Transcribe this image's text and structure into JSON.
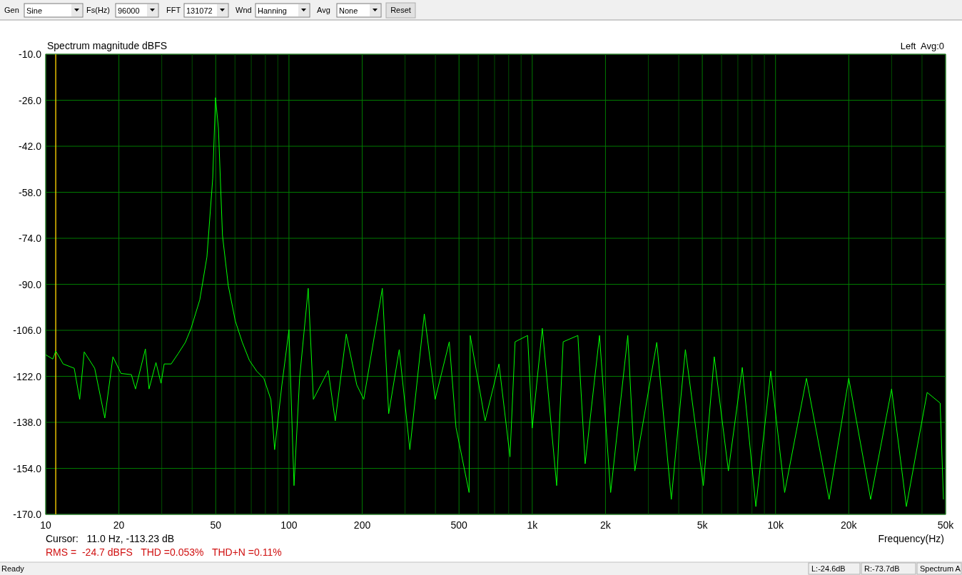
{
  "chart_data": {
    "type": "line",
    "title": "Spectrum magnitude dBFS",
    "xlabel": "Frequency(Hz)",
    "log": "x",
    "grid": true,
    "marker": "none",
    "line_style": "solid",
    "xlim": [
      10,
      50000
    ],
    "xticks": [
      10,
      20,
      {
        "value": 30,
        "label": null
      },
      {
        "value": 40,
        "label": null
      },
      50,
      {
        "value": 60,
        "label": null
      },
      {
        "value": 70,
        "label": null
      },
      {
        "value": 80,
        "label": null
      },
      {
        "value": 90,
        "label": null
      },
      100,
      200,
      {
        "value": 300,
        "label": null
      },
      {
        "value": 400,
        "label": null
      },
      500,
      {
        "value": 600,
        "label": null
      },
      {
        "value": 700,
        "label": null
      },
      {
        "value": 800,
        "label": null
      },
      {
        "value": 900,
        "label": null
      },
      {
        "value": 1000,
        "label": "1k"
      },
      {
        "value": 2000,
        "label": "2k"
      },
      {
        "value": 3000,
        "label": null
      },
      {
        "value": 4000,
        "label": null
      },
      {
        "value": 5000,
        "label": "5k"
      },
      {
        "value": 6000,
        "label": null
      },
      {
        "value": 7000,
        "label": null
      },
      {
        "value": 8000,
        "label": null
      },
      {
        "value": 9000,
        "label": null
      },
      {
        "value": 10000,
        "label": "10k"
      },
      {
        "value": 20000,
        "label": "20k"
      },
      {
        "value": 30000,
        "label": null
      },
      {
        "value": 40000,
        "label": null
      },
      {
        "value": 50000,
        "label": "50k"
      }
    ],
    "ylim": [
      -170,
      -10
    ],
    "yticks": [
      {
        "value": -10,
        "label": "-10.0"
      },
      {
        "value": -26,
        "label": "-26.0"
      },
      {
        "value": -42,
        "label": "-42.0"
      },
      {
        "value": -58,
        "label": "-58.0"
      },
      {
        "value": -74,
        "label": "-74.0"
      },
      {
        "value": -90,
        "label": "-90.0"
      },
      {
        "value": -106,
        "label": "-106.0"
      },
      {
        "value": -122,
        "label": "-122.0"
      },
      {
        "value": -138,
        "label": "-138.0"
      },
      {
        "value": -154,
        "label": "-154.0"
      },
      {
        "value": -170,
        "label": "-170.0"
      }
    ],
    "ref_lines": [
      {
        "axis": "x",
        "value": 11,
        "color": "#e8c000"
      }
    ],
    "annotations": [
      "Gen",
      "Sine",
      "Fs(Hz)",
      "96000",
      "FFT",
      "131072",
      "Wnd",
      "Hanning",
      "Avg",
      "None",
      "Reset",
      "Left  Avg:0",
      "Cursor:   11.0 Hz, -113.23 dB",
      "RMS =  -24.7 dBFS   THD =0.053%   THD+N =0.11%",
      "Ready",
      "L:-24.6dB",
      "R:-73.7dB",
      "Spectrum A"
    ],
    "series": [
      {
        "color": "#00ff00",
        "x": [
          10,
          10.7,
          11,
          11.8,
          13.1,
          13.8,
          14.4,
          15.9,
          17.5,
          18.9,
          20.4,
          22.5,
          23.4,
          25.7,
          26.6,
          28.4,
          29.8,
          30.7,
          32.8,
          35.1,
          37.5,
          39.6,
          43,
          46,
          48.6,
          49.9,
          51.3,
          53.3,
          56.3,
          60.2,
          64.3,
          68.8,
          73.7,
          78.8,
          84.3,
          87.3,
          93.5,
          100,
          104.9,
          110.6,
          120,
          126,
          145,
          155,
          172,
          190,
          203,
          242,
          257,
          284,
          314,
          360,
          399,
          456,
          486,
          550,
          556,
          640,
          730,
          810,
          850,
          957,
          1000,
          1100,
          1260,
          1340,
          1540,
          1650,
          1890,
          2100,
          2470,
          2640,
          3250,
          3730,
          4260,
          5050,
          5600,
          6400,
          7300,
          8300,
          9560,
          10900,
          13400,
          16600,
          20000,
          24600,
          30000,
          34500,
          42000,
          47500,
          49000
        ],
        "values": [
          -114.5,
          -116,
          -113.2,
          -117.7,
          -119.2,
          -130,
          -113.5,
          -119.2,
          -136.5,
          -115.2,
          -121,
          -121.4,
          -126.4,
          -112.5,
          -126.4,
          -117.2,
          -124.4,
          -117.7,
          -117.7,
          -114,
          -110.2,
          -105.3,
          -95.4,
          -80.5,
          -53.2,
          -25.1,
          -35.8,
          -73,
          -90.4,
          -102.8,
          -110.2,
          -116.5,
          -120.2,
          -122.7,
          -130.1,
          -147.5,
          -125.1,
          -105.8,
          -160,
          -122.7,
          -91.4,
          -130,
          -120,
          -137.5,
          -107.3,
          -125,
          -130,
          -91.4,
          -135,
          -112.7,
          -147.5,
          -100.3,
          -130,
          -110,
          -139.8,
          -162.4,
          -107.8,
          -137.5,
          -117.7,
          -150,
          -110,
          -107.8,
          -140,
          -105.3,
          -160,
          -110,
          -107.8,
          -152.4,
          -107.8,
          -162.4,
          -107.8,
          -154.9,
          -110.2,
          -164.8,
          -112.7,
          -160,
          -115.2,
          -154.9,
          -118.9,
          -167.3,
          -120.2,
          -162.4,
          -122.7,
          -164.8,
          -122.7,
          -164.8,
          -126.4,
          -167.3,
          -127.6,
          -131.3,
          -164.8
        ]
      }
    ]
  }
}
